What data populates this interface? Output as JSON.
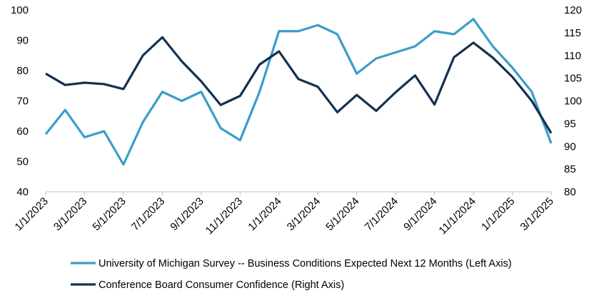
{
  "chart_data": {
    "type": "line",
    "x": [
      "1/1/2023",
      "2/1/2023",
      "3/1/2023",
      "4/1/2023",
      "5/1/2023",
      "6/1/2023",
      "7/1/2023",
      "8/1/2023",
      "9/1/2023",
      "10/1/2023",
      "11/1/2023",
      "12/1/2023",
      "1/1/2024",
      "2/1/2024",
      "3/1/2024",
      "4/1/2024",
      "5/1/2024",
      "6/1/2024",
      "7/1/2024",
      "8/1/2024",
      "9/1/2024",
      "10/1/2024",
      "11/1/2024",
      "12/1/2024",
      "1/1/2025",
      "2/1/2025",
      "3/1/2025"
    ],
    "x_tick_labels": [
      "1/1/2023",
      "3/1/2023",
      "5/1/2023",
      "7/1/2023",
      "9/1/2023",
      "11/1/2023",
      "1/1/2024",
      "3/1/2024",
      "5/1/2024",
      "7/1/2024",
      "9/1/2024",
      "11/1/2024",
      "1/1/2025",
      "3/1/2025"
    ],
    "y_left": {
      "lim": [
        40,
        100
      ],
      "ticks": [
        40,
        50,
        60,
        70,
        80,
        90,
        100
      ]
    },
    "y_right": {
      "lim": [
        80,
        120
      ],
      "ticks": [
        80,
        85,
        90,
        95,
        100,
        105,
        110,
        115,
        120
      ]
    },
    "series": [
      {
        "name": "University of Michigan Survey -- Business Conditions Expected Next 12 Months (Left Axis)",
        "axis": "left",
        "color": "#3a9dc9",
        "values": [
          59,
          67,
          58,
          60,
          49,
          63,
          73,
          70,
          73,
          61,
          57,
          73,
          93,
          93,
          95,
          92,
          79,
          84,
          86,
          88,
          93,
          92,
          97,
          88,
          81,
          73,
          56
        ]
      },
      {
        "name": "Conference Board Consumer Confidence (Right Axis)",
        "axis": "right",
        "color": "#14304f",
        "values": [
          106,
          103.5,
          104,
          103.7,
          102.6,
          110,
          114,
          108.7,
          104.3,
          99.1,
          101.1,
          108,
          110.9,
          104.8,
          103.1,
          97.5,
          101.3,
          97.8,
          101.9,
          105.6,
          99.2,
          109.6,
          112.8,
          109.5,
          105.3,
          100,
          92.9
        ]
      }
    ],
    "grid": false,
    "legend_position": "bottom"
  }
}
